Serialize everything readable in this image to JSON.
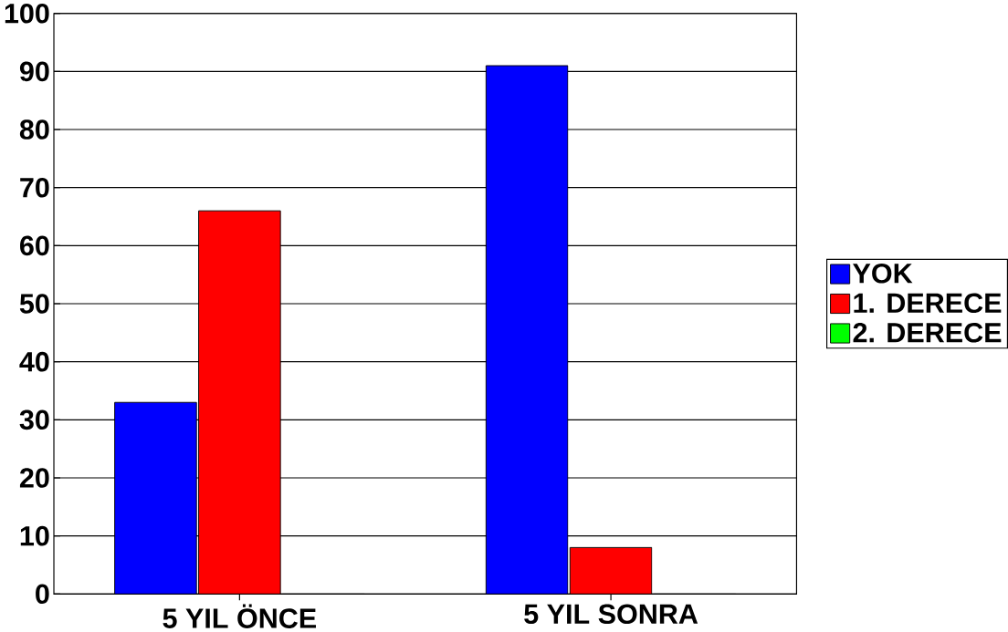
{
  "chart_data": {
    "type": "bar",
    "categories": [
      "5 YIL ÖNCE",
      "5 YIL SONRA"
    ],
    "series": [
      {
        "name": "YOK",
        "color": "#0000ff",
        "values": [
          33,
          91
        ]
      },
      {
        "name": "1. DERECE",
        "color": "#ff0000",
        "values": [
          66,
          8
        ]
      },
      {
        "name": "2. DERECE",
        "color": "#00ff00",
        "values": [
          0,
          0
        ]
      }
    ],
    "ylim": [
      0,
      100
    ],
    "yticks": [
      0,
      10,
      20,
      30,
      40,
      50,
      60,
      70,
      80,
      90,
      100
    ],
    "grid": "y",
    "legend": "right"
  }
}
